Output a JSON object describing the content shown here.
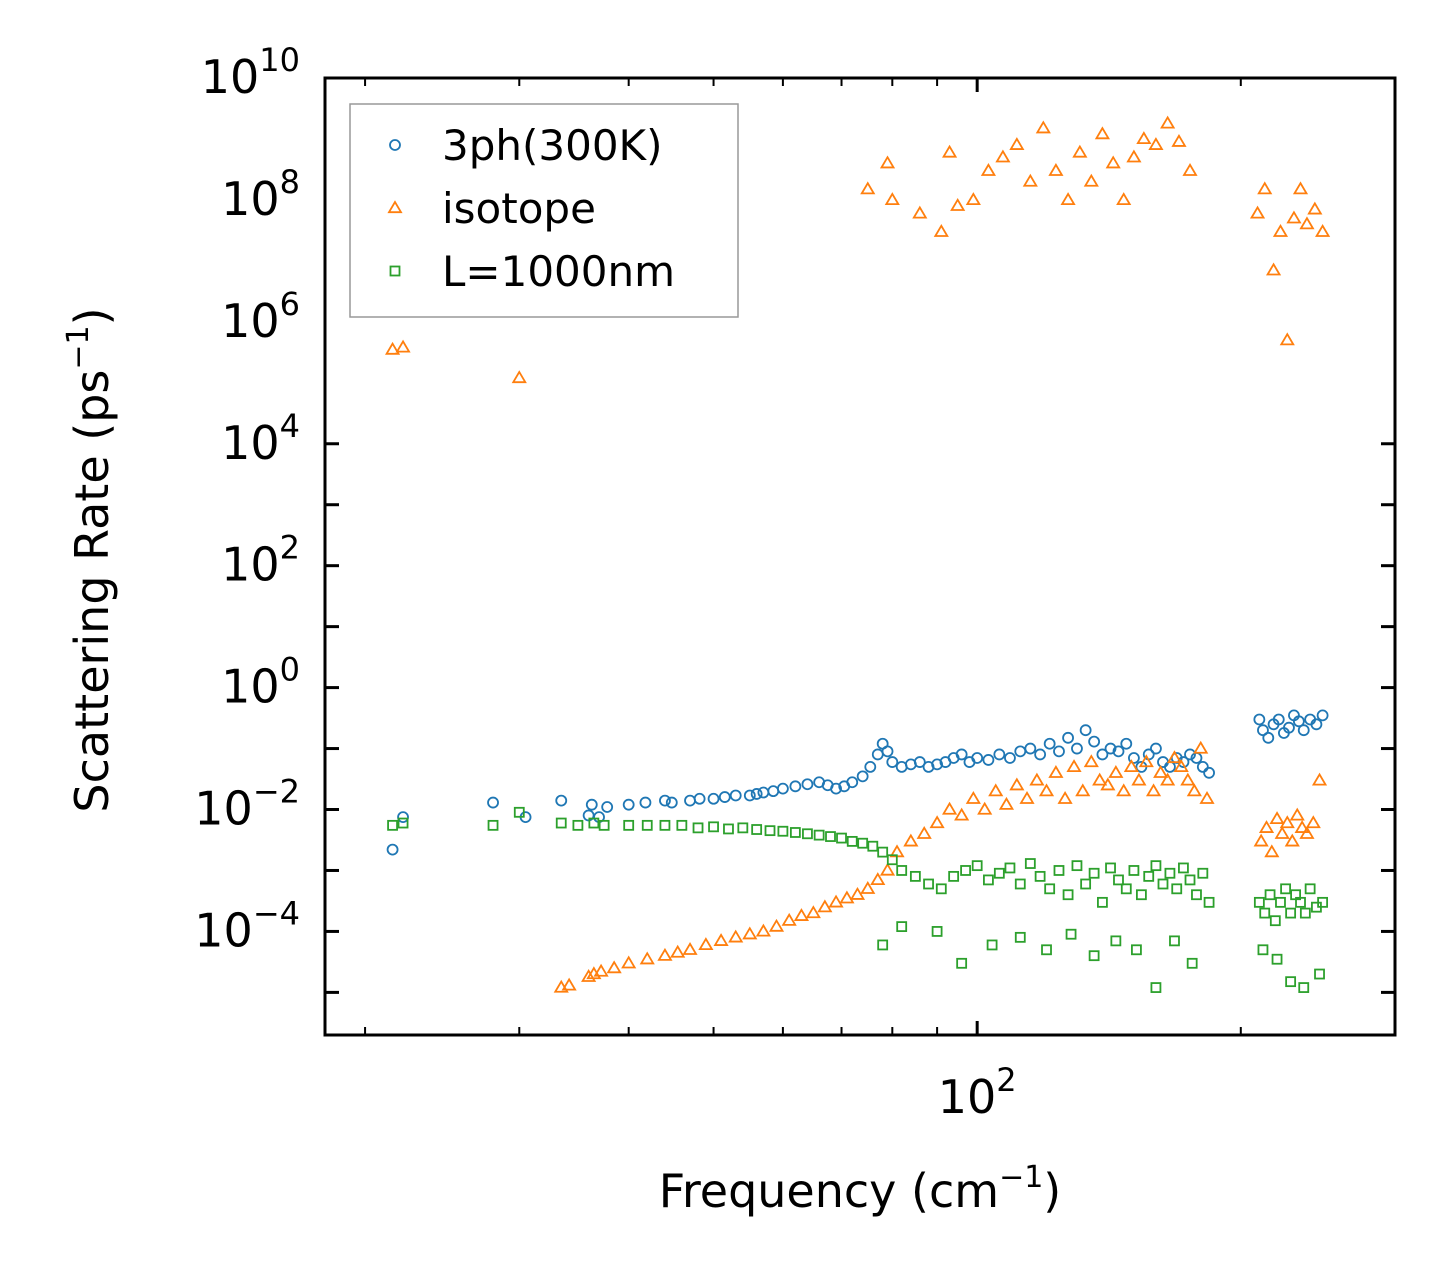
{
  "chart_data": {
    "type": "scatter",
    "title": "",
    "xlabel": "Frequency (cm",
    "xlabel_sup": "−1",
    "xlabel_end": ")",
    "ylabel": "Scattering Rate (ps",
    "ylabel_sup": "−1",
    "ylabel_end": ")",
    "xscale": "log",
    "yscale": "log",
    "xlim": [
      18,
      300
    ],
    "ylim": [
      2e-06,
      10000000000
    ],
    "x_tick_labels": [
      {
        "base": "10",
        "exp": "2",
        "value": 100
      }
    ],
    "y_tick_labels": [
      {
        "base": "10",
        "exp": "10",
        "value": 10000000000
      },
      {
        "base": "10",
        "exp": "8",
        "value": 100000000
      },
      {
        "base": "10",
        "exp": "6",
        "value": 1000000
      },
      {
        "base": "10",
        "exp": "4",
        "value": 10000
      },
      {
        "base": "10",
        "exp": "2",
        "value": 100
      },
      {
        "base": "10",
        "exp": "0",
        "value": 1
      },
      {
        "base": "10",
        "exp": "−2",
        "value": 0.01
      },
      {
        "base": "10",
        "exp": "−4",
        "value": 0.0001
      }
    ],
    "legend_position": "top-left",
    "series": [
      {
        "name": "3ph(300K)",
        "marker": "circle",
        "color": "#1f77b4",
        "x": [
          21.5,
          22.1,
          28.0,
          30.5,
          33.5,
          36.0,
          36.3,
          37.0,
          37.8,
          40.0,
          41.8,
          44.0,
          44.8,
          47.0,
          48.2,
          50.0,
          51.5,
          53.0,
          55.0,
          56.0,
          57.0,
          58.5,
          60.0,
          62.0,
          64.0,
          66.0,
          67.5,
          69.0,
          70.5,
          72.0,
          74.0,
          75.5,
          77.0,
          78.0,
          79.0,
          80.0,
          82.0,
          84.0,
          86.0,
          88.0,
          90.0,
          92.0,
          94.0,
          96.0,
          98.0,
          100.0,
          103.0,
          106.0,
          109.0,
          112.0,
          115.0,
          118.0,
          121.0,
          124.0,
          127.0,
          130.0,
          133.0,
          136.0,
          139.0,
          142.0,
          145.0,
          148.0,
          151.0,
          154.0,
          157.0,
          160.0,
          163.0,
          166.0,
          169.0,
          172.0,
          175.0,
          178.0,
          181.0,
          184.0,
          210.0,
          212.0,
          215.0,
          218.0,
          221.0,
          224.0,
          227.0,
          230.0,
          233.0,
          236.0,
          240.0,
          244.0,
          248.0
        ],
        "y": [
          0.0022,
          0.0075,
          0.013,
          0.0075,
          0.014,
          0.008,
          0.012,
          0.0075,
          0.011,
          0.012,
          0.013,
          0.014,
          0.013,
          0.014,
          0.015,
          0.015,
          0.016,
          0.017,
          0.017,
          0.018,
          0.019,
          0.02,
          0.022,
          0.024,
          0.026,
          0.028,
          0.025,
          0.022,
          0.024,
          0.028,
          0.035,
          0.05,
          0.08,
          0.12,
          0.09,
          0.06,
          0.05,
          0.055,
          0.06,
          0.05,
          0.055,
          0.06,
          0.07,
          0.08,
          0.06,
          0.07,
          0.065,
          0.08,
          0.07,
          0.09,
          0.1,
          0.08,
          0.12,
          0.09,
          0.15,
          0.1,
          0.2,
          0.13,
          0.08,
          0.1,
          0.09,
          0.12,
          0.07,
          0.05,
          0.08,
          0.1,
          0.06,
          0.05,
          0.07,
          0.06,
          0.08,
          0.07,
          0.05,
          0.04,
          0.3,
          0.2,
          0.15,
          0.25,
          0.3,
          0.18,
          0.22,
          0.35,
          0.28,
          0.2,
          0.3,
          0.25,
          0.35
        ]
      },
      {
        "name": "isotope",
        "marker": "triangle",
        "color": "#ff7f0e",
        "x": [
          21.5,
          22.1,
          30.0,
          33.5,
          34.2,
          36.0,
          36.5,
          37.2,
          38.5,
          40.0,
          42.0,
          44.0,
          45.5,
          47.0,
          49.0,
          51.0,
          53.0,
          55.0,
          57.0,
          59.0,
          61.0,
          63.0,
          65.0,
          67.0,
          69.0,
          71.0,
          73.0,
          75.0,
          77.0,
          79.0,
          81.0,
          84.0,
          87.0,
          90.0,
          93.0,
          96.0,
          99.0,
          102.0,
          105.0,
          108.0,
          111.0,
          114.0,
          117.0,
          120.0,
          123.0,
          126.0,
          129.0,
          132.0,
          135.0,
          138.0,
          141.0,
          144.0,
          147.0,
          150.0,
          153.0,
          156.0,
          159.0,
          162.0,
          165.0,
          168.0,
          171.0,
          174.0,
          177.0,
          180.0,
          183.0,
          211.0,
          214.0,
          217.0,
          220.0,
          223.0,
          226.0,
          229.0,
          232.0,
          235.0,
          238.0,
          242.0,
          246.0,
          75.0,
          79.0,
          80.0,
          86.0,
          91.0,
          93.0,
          95.0,
          99.0,
          103.0,
          107.0,
          111.0,
          115.0,
          119.0,
          123.0,
          127.0,
          131.0,
          135.0,
          139.0,
          143.0,
          147.0,
          151.0,
          155.0,
          160.0,
          165.0,
          170.0,
          175.0,
          209.0,
          213.0,
          218.0,
          222.0,
          226.0,
          230.0,
          234.0,
          238.0,
          243.0,
          248.0
        ],
        "y": [
          350000,
          380000,
          120000,
          1.2e-05,
          1.3e-05,
          1.8e-05,
          2e-05,
          2.2e-05,
          2.5e-05,
          3e-05,
          3.5e-05,
          4e-05,
          4.5e-05,
          5e-05,
          6e-05,
          7e-05,
          8e-05,
          9e-05,
          0.0001,
          0.00012,
          0.00015,
          0.00018,
          0.0002,
          0.00025,
          0.0003,
          0.00035,
          0.0004,
          0.0005,
          0.0007,
          0.001,
          0.002,
          0.003,
          0.004,
          0.006,
          0.01,
          0.008,
          0.015,
          0.01,
          0.02,
          0.012,
          0.025,
          0.015,
          0.03,
          0.02,
          0.04,
          0.015,
          0.05,
          0.02,
          0.06,
          0.03,
          0.025,
          0.04,
          0.02,
          0.05,
          0.03,
          0.06,
          0.02,
          0.04,
          0.03,
          0.07,
          0.05,
          0.03,
          0.02,
          0.1,
          0.015,
          0.003,
          0.005,
          0.002,
          0.007,
          0.004,
          0.006,
          0.003,
          0.008,
          0.005,
          0.004,
          0.006,
          0.03,
          150000000,
          400000000,
          100000000,
          60000000,
          30000000,
          600000000,
          80000000,
          100000000,
          300000000,
          500000000,
          800000000,
          200000000,
          1500000000,
          300000000,
          100000000,
          600000000,
          200000000,
          1200000000,
          400000000,
          100000000,
          500000000,
          1000000000,
          800000000,
          1800000000,
          900000000,
          300000000,
          60000000,
          150000000,
          7000000,
          30000000,
          500000,
          50000000,
          150000000,
          40000000,
          70000000,
          30000000
        ]
      },
      {
        "name": "L=1000nm",
        "marker": "square",
        "color": "#2ca02c",
        "x": [
          21.5,
          22.1,
          28.0,
          30.0,
          33.5,
          35.0,
          36.5,
          37.5,
          40.0,
          42.0,
          44.0,
          46.0,
          48.0,
          50.0,
          52.0,
          54.0,
          56.0,
          58.0,
          60.0,
          62.0,
          64.0,
          66.0,
          68.0,
          70.0,
          72.0,
          74.0,
          76.0,
          78.0,
          80.0,
          82.0,
          85.0,
          88.0,
          91.0,
          94.0,
          97.0,
          100.0,
          103.0,
          106.0,
          109.0,
          112.0,
          115.0,
          118.0,
          121.0,
          124.0,
          127.0,
          130.0,
          133.0,
          136.0,
          139.0,
          142.0,
          145.0,
          148.0,
          151.0,
          154.0,
          157.0,
          160.0,
          163.0,
          166.0,
          169.0,
          172.0,
          175.0,
          178.0,
          181.0,
          184.0,
          210.0,
          213.0,
          216.0,
          219.0,
          222.0,
          225.0,
          228.0,
          231.0,
          234.0,
          237.0,
          240.0,
          244.0,
          248.0,
          78.0,
          82.0,
          90.0,
          96.0,
          104.0,
          112.0,
          120.0,
          128.0,
          136.0,
          144.0,
          152.0,
          160.0,
          168.0,
          176.0,
          212.0,
          220.0,
          228.0,
          236.0,
          246.0
        ],
        "y": [
          0.0055,
          0.006,
          0.0055,
          0.009,
          0.006,
          0.0055,
          0.006,
          0.0055,
          0.0055,
          0.0055,
          0.0055,
          0.0055,
          0.005,
          0.0052,
          0.0048,
          0.005,
          0.0047,
          0.0045,
          0.0044,
          0.0042,
          0.004,
          0.0038,
          0.0036,
          0.0034,
          0.003,
          0.0028,
          0.0025,
          0.002,
          0.0015,
          0.001,
          0.0008,
          0.0006,
          0.0005,
          0.0008,
          0.001,
          0.0012,
          0.0007,
          0.0009,
          0.0011,
          0.0006,
          0.0013,
          0.0008,
          0.0005,
          0.001,
          0.0004,
          0.0012,
          0.0006,
          0.0009,
          0.0003,
          0.0011,
          0.0007,
          0.0005,
          0.001,
          0.0004,
          0.0008,
          0.0012,
          0.0006,
          0.0009,
          0.0005,
          0.0011,
          0.0007,
          0.0004,
          0.0009,
          0.0003,
          0.0003,
          0.0002,
          0.0004,
          0.00015,
          0.0003,
          0.0005,
          0.0002,
          0.0004,
          0.0003,
          0.0002,
          0.0005,
          0.00025,
          0.0003,
          6e-05,
          0.00012,
          0.0001,
          3e-05,
          6e-05,
          8e-05,
          5e-05,
          9e-05,
          4e-05,
          7e-05,
          5e-05,
          1.2e-05,
          7e-05,
          3e-05,
          5e-05,
          3.5e-05,
          1.5e-05,
          1.2e-05,
          2e-05
        ]
      }
    ]
  }
}
